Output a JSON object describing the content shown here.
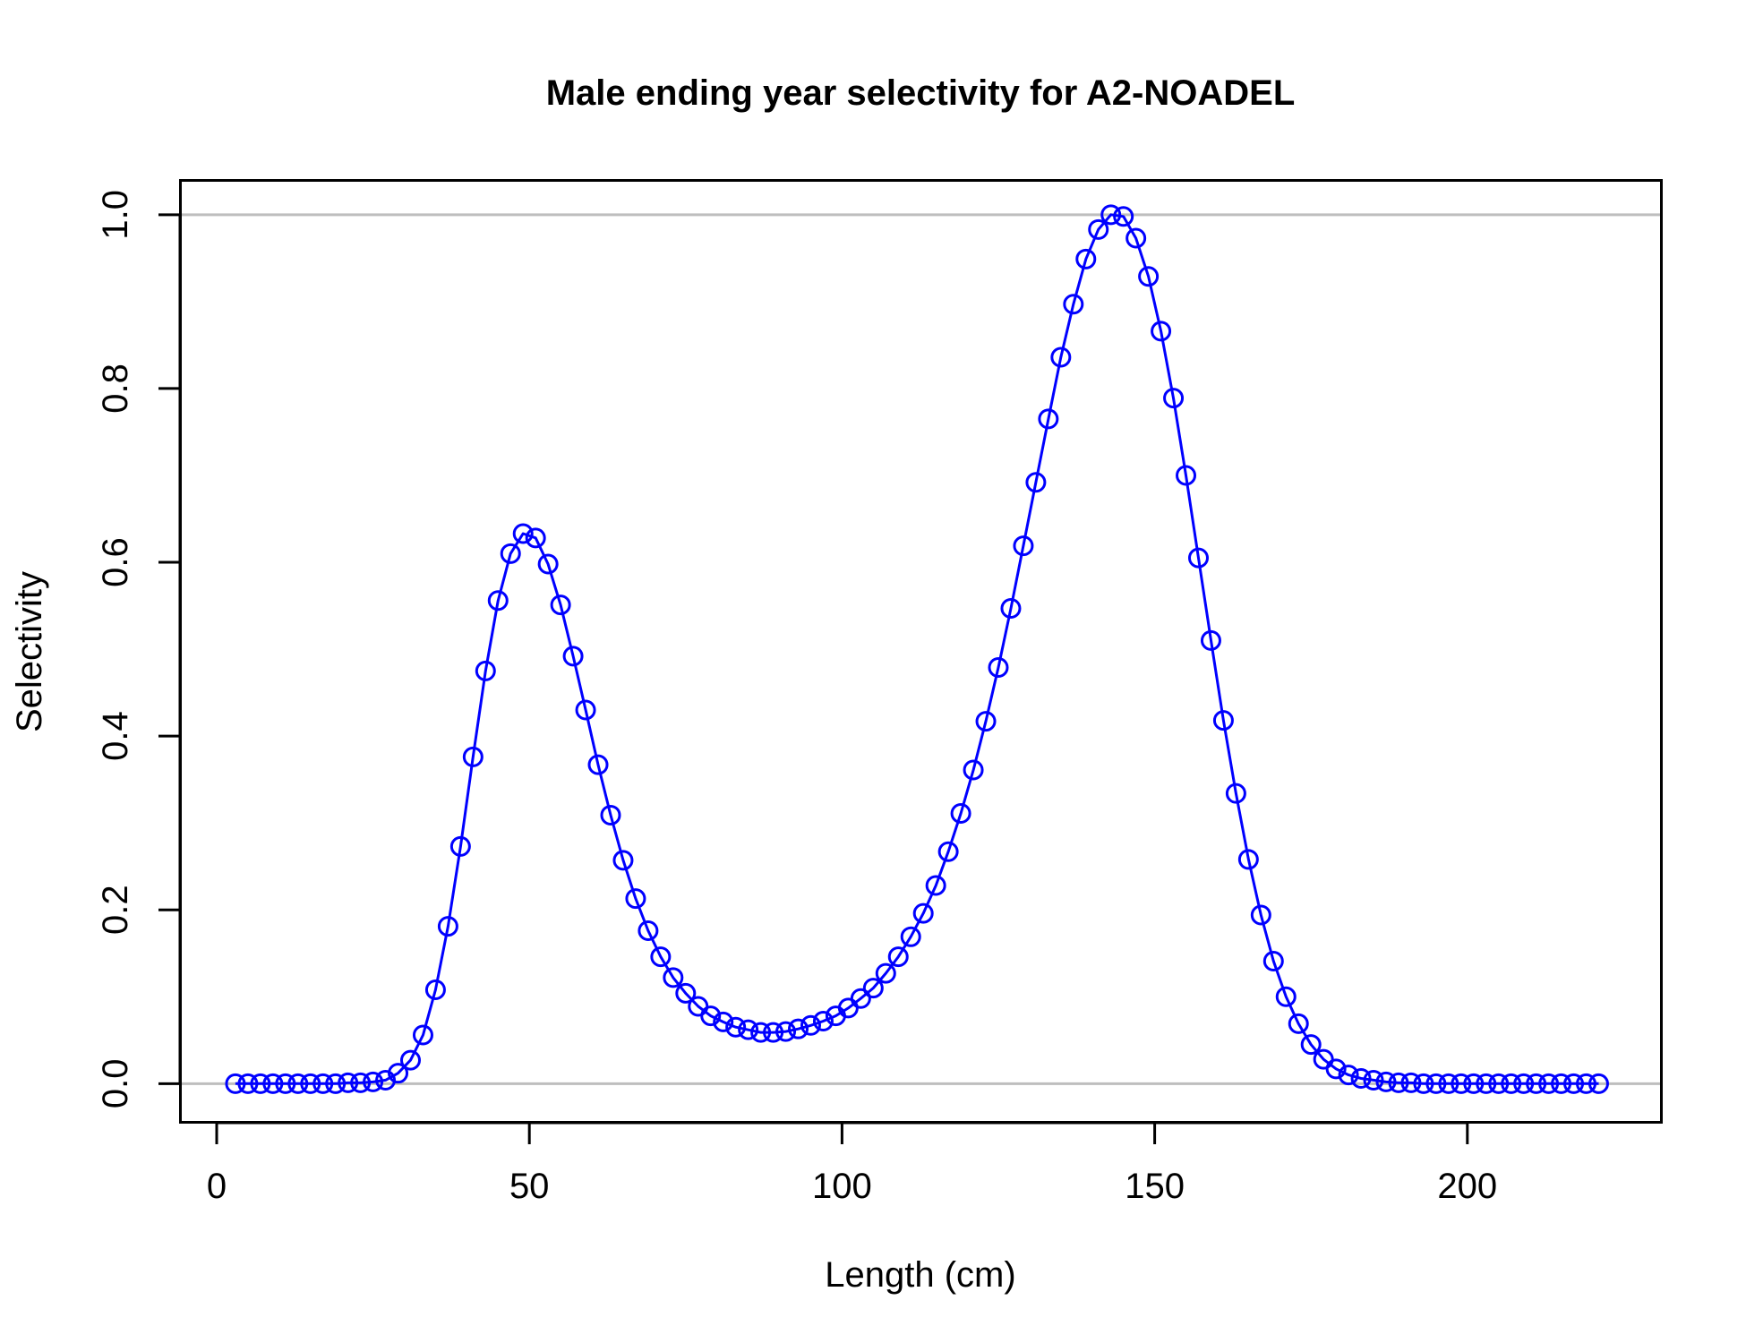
{
  "chart_data": {
    "type": "line",
    "title": "Male ending year selectivity for A2-NOADEL",
    "xlabel": "Length (cm)",
    "ylabel": "Selectivity",
    "xlim": [
      -5.87,
      231.1
    ],
    "ylim": [
      -0.045,
      1.04
    ],
    "xticks": [
      0,
      50,
      100,
      150,
      200
    ],
    "xtick_labels": [
      "0",
      "50",
      "100",
      "150",
      "200"
    ],
    "yticks": [
      0.0,
      0.2,
      0.4,
      0.6,
      0.8,
      1.0
    ],
    "ytick_labels": [
      "0.0",
      "0.2",
      "0.4",
      "0.6",
      "0.8",
      "1.0"
    ],
    "reference_lines": [
      0,
      1
    ],
    "grid": false,
    "series": [
      {
        "name": "Selectivity",
        "color": "#0000ff",
        "marker": "open-circle",
        "line": true,
        "x": [
          3,
          5,
          7,
          9,
          11,
          13,
          15,
          17,
          19,
          21,
          23,
          25,
          27,
          29,
          31,
          33,
          35,
          37,
          39,
          41,
          43,
          45,
          47,
          49,
          51,
          53,
          55,
          57,
          59,
          61,
          63,
          65,
          67,
          69,
          71,
          73,
          75,
          77,
          79,
          81,
          83,
          85,
          87,
          89,
          91,
          93,
          95,
          97,
          99,
          101,
          103,
          105,
          107,
          109,
          111,
          113,
          115,
          117,
          119,
          121,
          123,
          125,
          127,
          129,
          131,
          133,
          135,
          137,
          139,
          141,
          143,
          145,
          147,
          149,
          151,
          153,
          155,
          157,
          159,
          161,
          163,
          165,
          167,
          169,
          171,
          173,
          175,
          177,
          179,
          181,
          183,
          185,
          187,
          189,
          191,
          193,
          195,
          197,
          199,
          201,
          203,
          205,
          207,
          209,
          211,
          213,
          215,
          217,
          219,
          221
        ],
        "y": [
          0.0,
          0.0,
          0.0,
          0.0,
          0.0,
          0.0,
          0.0,
          0.0,
          0.0,
          0.001,
          0.001,
          0.002,
          0.004,
          0.012,
          0.027,
          0.056,
          0.108,
          0.181,
          0.273,
          0.376,
          0.475,
          0.556,
          0.61,
          0.633,
          0.628,
          0.598,
          0.551,
          0.492,
          0.43,
          0.367,
          0.309,
          0.257,
          0.213,
          0.176,
          0.146,
          0.122,
          0.104,
          0.089,
          0.078,
          0.071,
          0.065,
          0.062,
          0.059,
          0.059,
          0.06,
          0.063,
          0.067,
          0.072,
          0.078,
          0.087,
          0.098,
          0.11,
          0.127,
          0.146,
          0.169,
          0.196,
          0.228,
          0.267,
          0.311,
          0.361,
          0.417,
          0.479,
          0.547,
          0.619,
          0.692,
          0.765,
          0.836,
          0.897,
          0.949,
          0.983,
          1.0,
          0.998,
          0.973,
          0.929,
          0.866,
          0.789,
          0.7,
          0.605,
          0.51,
          0.418,
          0.334,
          0.258,
          0.194,
          0.141,
          0.1,
          0.069,
          0.045,
          0.028,
          0.017,
          0.01,
          0.006,
          0.004,
          0.002,
          0.001,
          0.001,
          0.0,
          0.0,
          0.0,
          0.0,
          0.0,
          0.0,
          0.0,
          0.0,
          0.0,
          0.0,
          0.0,
          0.0,
          0.0,
          0.0,
          0.0
        ]
      }
    ]
  }
}
